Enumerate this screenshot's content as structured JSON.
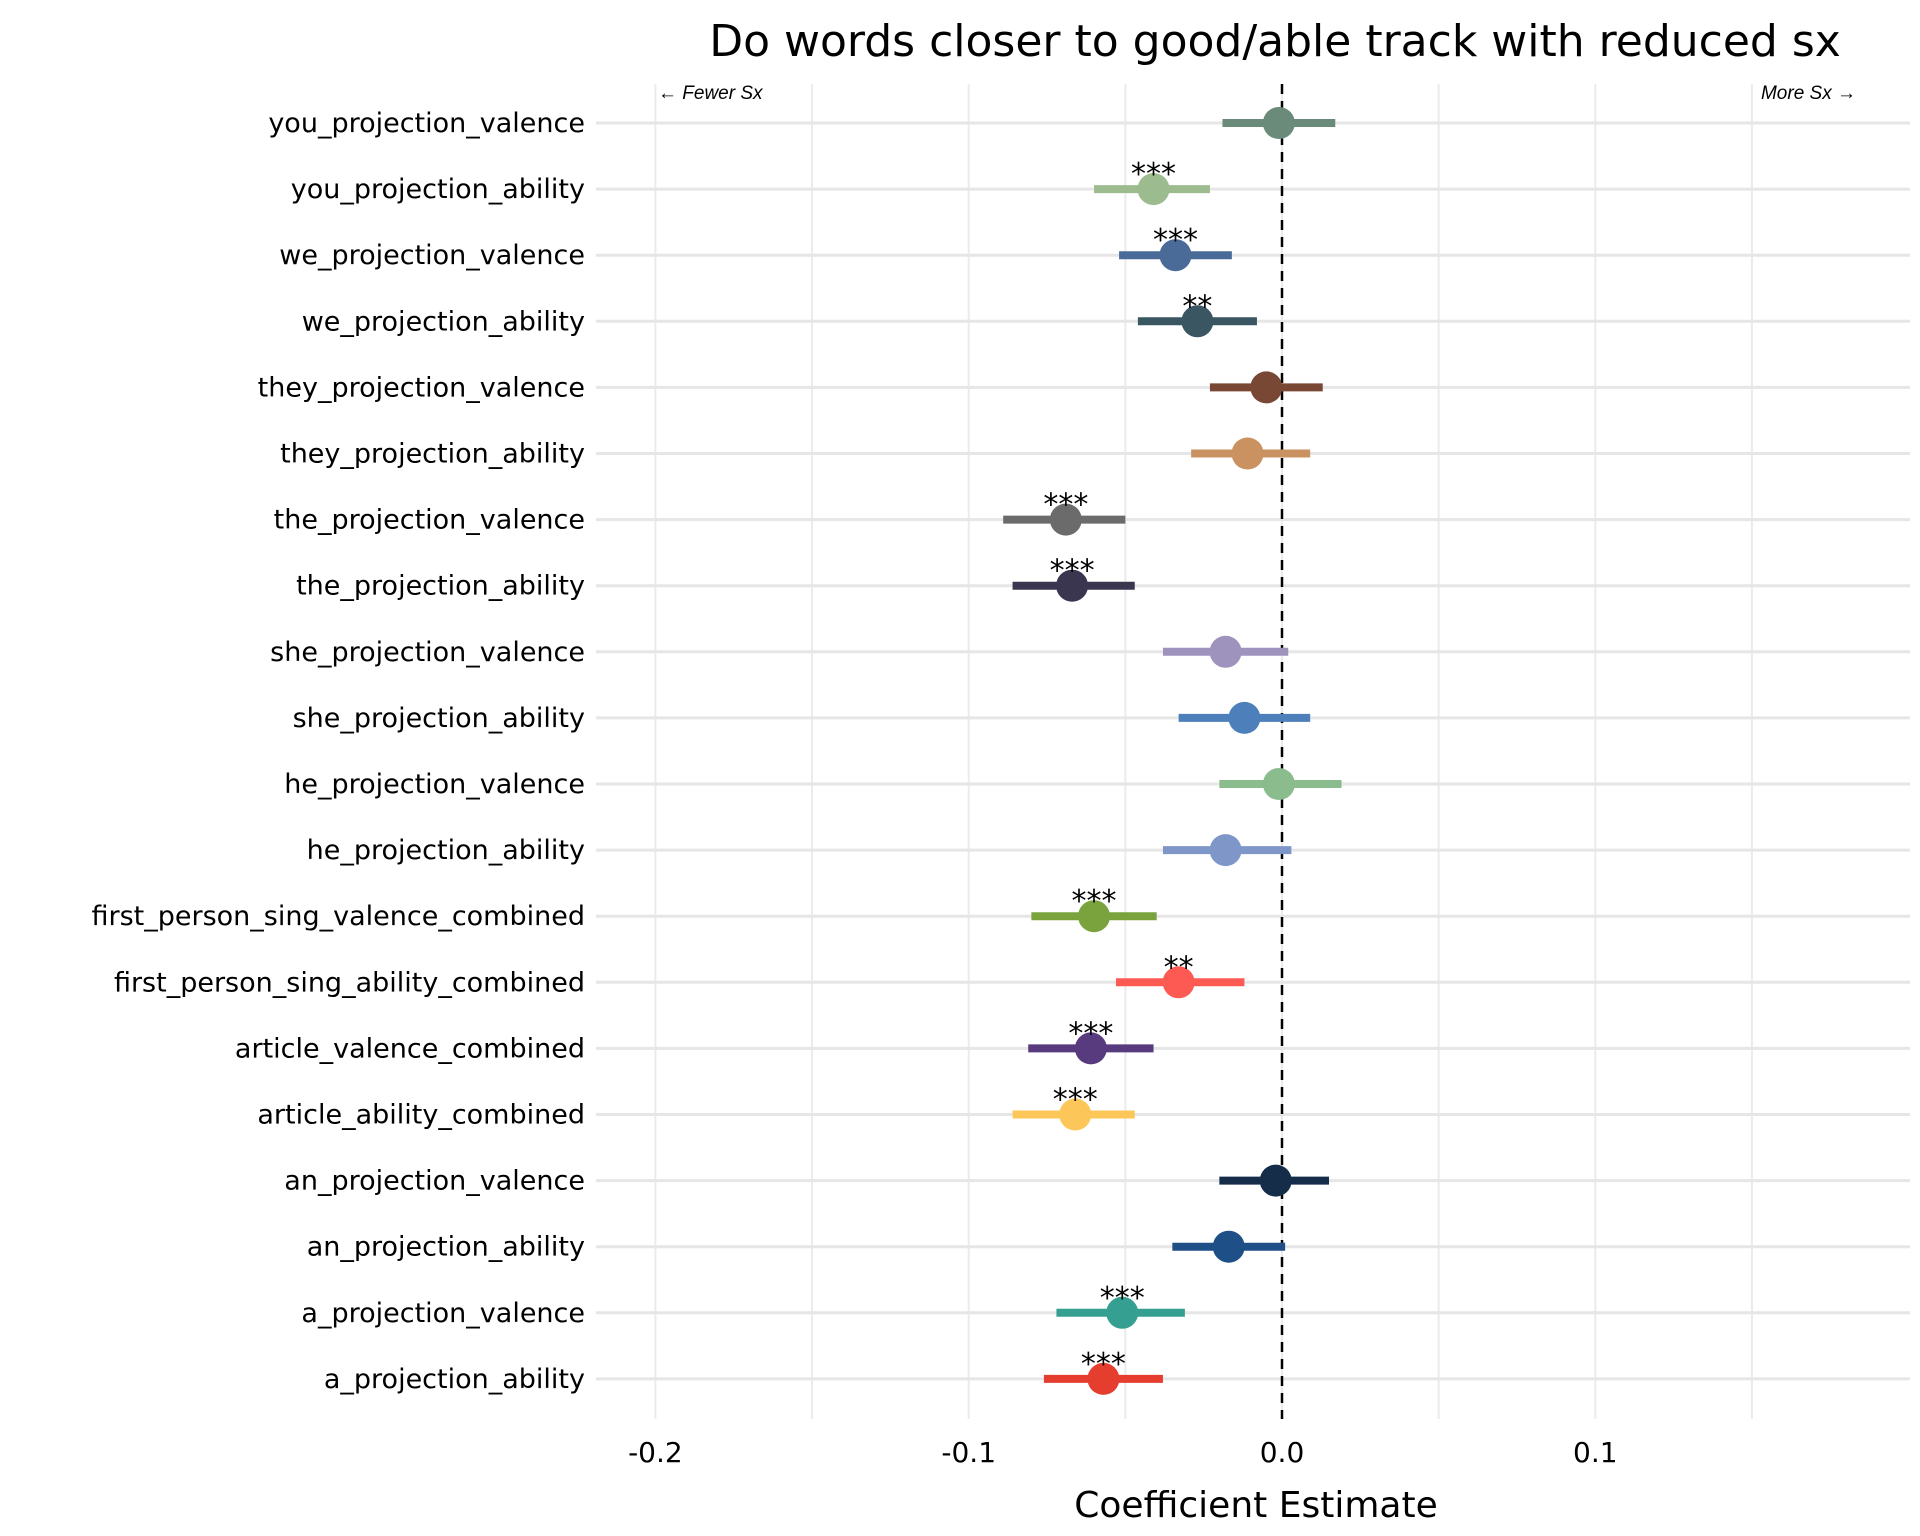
{
  "chart_data": {
    "type": "scatter",
    "subtype": "coefficient-plot-with-error-bars",
    "title": "Do words closer to good/able track with reduced sx",
    "xlabel": "Coefficient Estimate",
    "ylabel": "",
    "xlim": [
      -0.2,
      0.195
    ],
    "xticks": [
      -0.2,
      -0.1,
      0.0,
      0.1
    ],
    "xtick_labels": [
      "-0.2",
      "-0.1",
      "0.0",
      "0.1"
    ],
    "minor_gridlines": [
      -0.15,
      -0.05,
      0.05,
      0.15
    ],
    "grid": true,
    "reference_line": 0.0,
    "annotations": {
      "left": "← Fewer Sx",
      "right": "More Sx →"
    },
    "series": [
      {
        "name": "you_projection_valence",
        "estimate": -0.001,
        "ci_low": -0.019,
        "ci_high": 0.017,
        "sig": "",
        "color": "#6a8a7a"
      },
      {
        "name": "you_projection_ability",
        "estimate": -0.041,
        "ci_low": -0.06,
        "ci_high": -0.023,
        "sig": "***",
        "color": "#9cbc8f"
      },
      {
        "name": "we_projection_valence",
        "estimate": -0.034,
        "ci_low": -0.052,
        "ci_high": -0.016,
        "sig": "***",
        "color": "#4a6b98"
      },
      {
        "name": "we_projection_ability",
        "estimate": -0.027,
        "ci_low": -0.046,
        "ci_high": -0.008,
        "sig": "**",
        "color": "#3a5662"
      },
      {
        "name": "they_projection_valence",
        "estimate": -0.005,
        "ci_low": -0.023,
        "ci_high": 0.013,
        "sig": "",
        "color": "#784834"
      },
      {
        "name": "they_projection_ability",
        "estimate": -0.011,
        "ci_low": -0.029,
        "ci_high": 0.009,
        "sig": "",
        "color": "#c99260"
      },
      {
        "name": "the_projection_valence",
        "estimate": -0.069,
        "ci_low": -0.089,
        "ci_high": -0.05,
        "sig": "***",
        "color": "#6b6b6b"
      },
      {
        "name": "the_projection_ability",
        "estimate": -0.067,
        "ci_low": -0.086,
        "ci_high": -0.047,
        "sig": "***",
        "color": "#3b3650"
      },
      {
        "name": "she_projection_valence",
        "estimate": -0.018,
        "ci_low": -0.038,
        "ci_high": 0.002,
        "sig": "",
        "color": "#9e93bd"
      },
      {
        "name": "she_projection_ability",
        "estimate": -0.012,
        "ci_low": -0.033,
        "ci_high": 0.009,
        "sig": "",
        "color": "#4d80ba"
      },
      {
        "name": "he_projection_valence",
        "estimate": -0.001,
        "ci_low": -0.02,
        "ci_high": 0.019,
        "sig": "",
        "color": "#8bbc8e"
      },
      {
        "name": "he_projection_ability",
        "estimate": -0.018,
        "ci_low": -0.038,
        "ci_high": 0.003,
        "sig": "",
        "color": "#7f97c8"
      },
      {
        "name": "first_person_sing_valence_combined",
        "estimate": -0.06,
        "ci_low": -0.08,
        "ci_high": -0.04,
        "sig": "***",
        "color": "#7aa33e"
      },
      {
        "name": "first_person_sing_ability_combined",
        "estimate": -0.033,
        "ci_low": -0.053,
        "ci_high": -0.012,
        "sig": "**",
        "color": "#fd5a54"
      },
      {
        "name": "article_valence_combined",
        "estimate": -0.061,
        "ci_low": -0.081,
        "ci_high": -0.041,
        "sig": "***",
        "color": "#573b7e"
      },
      {
        "name": "article_ability_combined",
        "estimate": -0.066,
        "ci_low": -0.086,
        "ci_high": -0.047,
        "sig": "***",
        "color": "#fcc658"
      },
      {
        "name": "an_projection_valence",
        "estimate": -0.002,
        "ci_low": -0.02,
        "ci_high": 0.015,
        "sig": "",
        "color": "#162d4a"
      },
      {
        "name": "an_projection_ability",
        "estimate": -0.017,
        "ci_low": -0.035,
        "ci_high": 0.001,
        "sig": "",
        "color": "#1e4f87"
      },
      {
        "name": "a_projection_valence",
        "estimate": -0.051,
        "ci_low": -0.072,
        "ci_high": -0.031,
        "sig": "***",
        "color": "#35a091"
      },
      {
        "name": "a_projection_ability",
        "estimate": -0.057,
        "ci_low": -0.076,
        "ci_high": -0.038,
        "sig": "***",
        "color": "#e53e2f"
      }
    ]
  }
}
